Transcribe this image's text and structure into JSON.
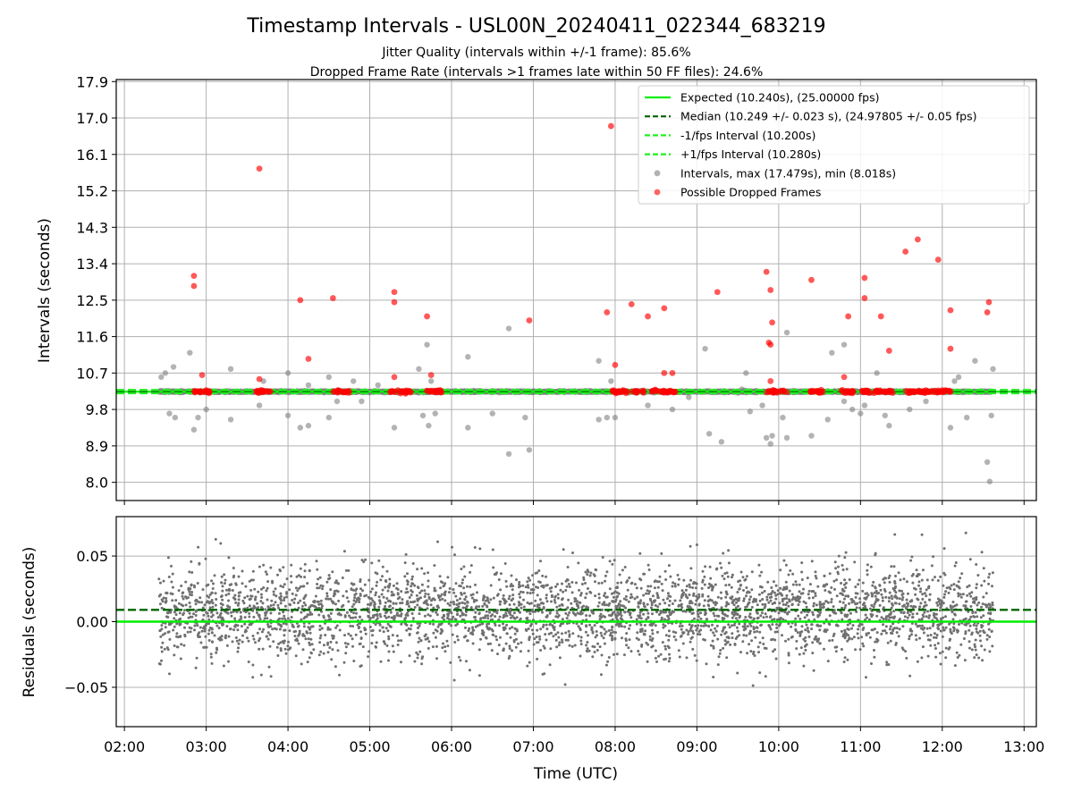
{
  "figure": {
    "title": "Timestamp Intervals - USL00N_20240411_022344_683219",
    "subtitle_1": "Jitter Quality (intervals within +/-1 frame): 85.6%",
    "subtitle_2": "Dropped Frame Rate (intervals >1 frames late within 50 FF files): 24.6%"
  },
  "colors": {
    "expected": "#00ee00",
    "median": "#006400",
    "fps_interval": "#22ee22",
    "intervals": "#808080",
    "dropped": "#ff0000",
    "grid": "#b0b0b0"
  },
  "chart_data": [
    {
      "type": "scatter",
      "title": "",
      "xlabel": "",
      "ylabel": "Intervals (seconds)",
      "x_unit": "hours UTC",
      "xlim": [
        1.9,
        13.15
      ],
      "ylim": [
        7.55,
        17.95
      ],
      "yticks": [
        8.0,
        8.9,
        9.8,
        10.7,
        11.6,
        12.5,
        13.4,
        14.3,
        15.2,
        16.1,
        17.0,
        17.9
      ],
      "ytick_labels": [
        "8.0",
        "8.9",
        "9.8",
        "10.7",
        "11.6",
        "12.5",
        "13.4",
        "14.3",
        "15.2",
        "16.1",
        "17.0",
        "17.9"
      ],
      "grid": true,
      "legend_position": "top-right",
      "reference_lines": [
        {
          "name": "Expected (10.240s), (25.00000 fps)",
          "y": 10.24,
          "style": "solid",
          "color": "#00ee00"
        },
        {
          "name": "Median (10.249 +/- 0.023 s), (24.97805 +/- 0.05 fps)",
          "y": 10.249,
          "style": "dashed",
          "color": "#006400"
        },
        {
          "name": "-1/fps Interval (10.200s)",
          "y": 10.2,
          "style": "dashed",
          "color": "#22ee22"
        },
        {
          "name": "+1/fps Interval (10.280s)",
          "y": 10.28,
          "style": "dashed",
          "color": "#22ee22"
        }
      ],
      "series": [
        {
          "name": "Intervals, max (17.479s), min (8.018s)",
          "color": "#808080",
          "x_range": [
            2.42,
            12.62
          ],
          "y_center": 10.24,
          "y_spread": 0.03,
          "count": 3600,
          "outliers": [
            [
              2.45,
              10.6
            ],
            [
              2.5,
              10.7
            ],
            [
              2.6,
              10.85
            ],
            [
              2.55,
              9.7
            ],
            [
              2.62,
              9.6
            ],
            [
              2.8,
              11.2
            ],
            [
              2.85,
              9.3
            ],
            [
              2.9,
              9.6
            ],
            [
              3.0,
              9.8
            ],
            [
              3.3,
              10.8
            ],
            [
              3.3,
              9.55
            ],
            [
              3.65,
              9.9
            ],
            [
              3.7,
              10.5
            ],
            [
              4.0,
              10.7
            ],
            [
              4.0,
              9.65
            ],
            [
              4.15,
              9.35
            ],
            [
              4.25,
              9.4
            ],
            [
              4.25,
              10.4
            ],
            [
              4.5,
              10.6
            ],
            [
              4.5,
              9.6
            ],
            [
              4.6,
              10.0
            ],
            [
              4.8,
              10.5
            ],
            [
              4.9,
              10.0
            ],
            [
              5.1,
              10.4
            ],
            [
              5.3,
              9.35
            ],
            [
              5.6,
              10.8
            ],
            [
              5.65,
              9.65
            ],
            [
              5.7,
              11.4
            ],
            [
              5.72,
              9.4
            ],
            [
              5.75,
              10.5
            ],
            [
              5.8,
              9.7
            ],
            [
              6.2,
              11.1
            ],
            [
              6.2,
              9.35
            ],
            [
              6.5,
              9.7
            ],
            [
              6.7,
              8.7
            ],
            [
              6.7,
              11.8
            ],
            [
              6.95,
              8.8
            ],
            [
              6.9,
              9.6
            ],
            [
              7.8,
              11.0
            ],
            [
              7.8,
              9.55
            ],
            [
              7.9,
              9.6
            ],
            [
              7.95,
              10.5
            ],
            [
              8.0,
              9.6
            ],
            [
              8.4,
              9.9
            ],
            [
              8.7,
              9.8
            ],
            [
              8.9,
              10.1
            ],
            [
              9.1,
              11.3
            ],
            [
              9.15,
              9.2
            ],
            [
              9.3,
              9.0
            ],
            [
              9.55,
              10.3
            ],
            [
              9.6,
              10.7
            ],
            [
              9.65,
              9.75
            ],
            [
              9.8,
              9.9
            ],
            [
              9.85,
              9.1
            ],
            [
              9.9,
              8.95
            ],
            [
              9.92,
              9.15
            ],
            [
              10.05,
              9.6
            ],
            [
              10.1,
              11.7
            ],
            [
              10.1,
              9.1
            ],
            [
              10.4,
              9.15
            ],
            [
              10.6,
              9.55
            ],
            [
              10.65,
              11.2
            ],
            [
              10.8,
              10.0
            ],
            [
              10.8,
              11.4
            ],
            [
              10.9,
              9.8
            ],
            [
              11.0,
              9.7
            ],
            [
              11.05,
              9.9
            ],
            [
              11.2,
              10.7
            ],
            [
              11.3,
              9.65
            ],
            [
              11.35,
              9.4
            ],
            [
              11.6,
              9.8
            ],
            [
              11.8,
              10.0
            ],
            [
              12.1,
              9.35
            ],
            [
              12.15,
              10.5
            ],
            [
              12.2,
              10.6
            ],
            [
              12.3,
              9.6
            ],
            [
              12.4,
              11.0
            ],
            [
              12.55,
              8.5
            ],
            [
              12.58,
              8.02
            ],
            [
              12.6,
              9.65
            ],
            [
              12.62,
              10.8
            ]
          ]
        },
        {
          "name": "Possible Dropped Frames",
          "color": "#ff0000",
          "cluster_y": 10.24,
          "clusters": [
            [
              2.85,
              3.05
            ],
            [
              3.6,
              3.8
            ],
            [
              4.55,
              4.75
            ],
            [
              5.25,
              5.5
            ],
            [
              5.7,
              5.9
            ],
            [
              7.95,
              8.15
            ],
            [
              8.2,
              8.35
            ],
            [
              8.45,
              8.75
            ],
            [
              9.85,
              10.1
            ],
            [
              10.35,
              10.55
            ],
            [
              10.75,
              10.95
            ],
            [
              11.0,
              11.2
            ],
            [
              11.2,
              11.4
            ],
            [
              11.55,
              11.9
            ],
            [
              11.9,
              12.1
            ]
          ],
          "points": [
            [
              2.85,
              13.1
            ],
            [
              2.85,
              12.85
            ],
            [
              2.95,
              10.65
            ],
            [
              3.65,
              15.75
            ],
            [
              3.65,
              10.55
            ],
            [
              4.15,
              12.5
            ],
            [
              4.25,
              11.05
            ],
            [
              4.55,
              12.55
            ],
            [
              5.3,
              12.7
            ],
            [
              5.3,
              12.45
            ],
            [
              5.3,
              10.6
            ],
            [
              5.7,
              12.1
            ],
            [
              5.75,
              10.65
            ],
            [
              6.95,
              12.0
            ],
            [
              7.9,
              12.2
            ],
            [
              7.95,
              16.8
            ],
            [
              8.0,
              10.9
            ],
            [
              8.2,
              12.4
            ],
            [
              8.4,
              12.1
            ],
            [
              8.6,
              12.3
            ],
            [
              8.6,
              10.7
            ],
            [
              8.7,
              10.7
            ],
            [
              9.25,
              12.7
            ],
            [
              9.85,
              13.2
            ],
            [
              9.9,
              12.75
            ],
            [
              9.92,
              11.95
            ],
            [
              9.9,
              11.4
            ],
            [
              9.88,
              11.45
            ],
            [
              9.9,
              10.5
            ],
            [
              10.4,
              13.0
            ],
            [
              10.8,
              10.6
            ],
            [
              10.85,
              12.1
            ],
            [
              10.9,
              10.2
            ],
            [
              11.05,
              13.05
            ],
            [
              11.05,
              12.55
            ],
            [
              11.25,
              12.1
            ],
            [
              11.35,
              11.25
            ],
            [
              11.55,
              13.7
            ],
            [
              11.7,
              14.0
            ],
            [
              11.95,
              13.5
            ],
            [
              12.1,
              12.25
            ],
            [
              12.1,
              11.3
            ],
            [
              12.55,
              12.2
            ],
            [
              12.57,
              12.45
            ]
          ]
        }
      ]
    },
    {
      "type": "scatter",
      "title": "",
      "xlabel": "Time (UTC)",
      "ylabel": "Residuals (seconds)",
      "x_unit": "hours UTC",
      "xlim": [
        1.9,
        13.15
      ],
      "ylim": [
        -0.08,
        0.08
      ],
      "xticks": [
        2,
        3,
        4,
        5,
        6,
        7,
        8,
        9,
        10,
        11,
        12,
        13
      ],
      "xtick_labels": [
        "02:00",
        "03:00",
        "04:00",
        "05:00",
        "06:00",
        "07:00",
        "08:00",
        "09:00",
        "10:00",
        "11:00",
        "12:00",
        "13:00"
      ],
      "yticks": [
        -0.05,
        0.0,
        0.05
      ],
      "ytick_labels": [
        "−0.05",
        "0.00",
        "0.05"
      ],
      "grid": true,
      "reference_lines": [
        {
          "name": "Expected",
          "y": 0.0,
          "style": "solid",
          "color": "#00ee00"
        },
        {
          "name": "Median",
          "y": 0.009,
          "style": "dashed",
          "color": "#006400"
        }
      ],
      "series": [
        {
          "name": "Residuals",
          "color": "#707070",
          "x_range": [
            2.42,
            12.62
          ],
          "y_center": 0.007,
          "y_spread": 0.025,
          "y_clip": [
            -0.078,
            0.079
          ],
          "count": 3600
        }
      ]
    }
  ]
}
